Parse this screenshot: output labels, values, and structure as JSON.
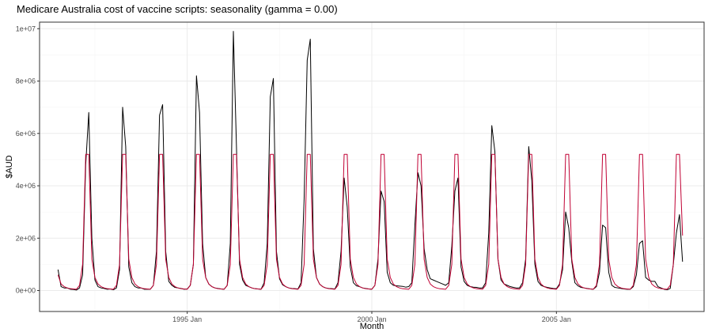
{
  "chart_data": {
    "type": "line",
    "title": "Medicare Australia cost of vaccine scripts: seasonality (gamma = 0.00)",
    "xlabel": "Month",
    "ylabel": "$AUD",
    "x_start": "1991 Jul",
    "x_end": "2008 Jun",
    "x_ticks": [
      {
        "value": "1995 Jan",
        "label": "1995 Jan"
      },
      {
        "value": "2000 Jan",
        "label": "2000 Jan"
      },
      {
        "value": "2005 Jan",
        "label": "2005 Jan"
      }
    ],
    "xlim": [
      "1991 Jan",
      "2009 Jan"
    ],
    "ylim": [
      -800000,
      10250000
    ],
    "y_ticks": [
      {
        "value": 0,
        "label": "0e+00"
      },
      {
        "value": 2000000,
        "label": "2e+06"
      },
      {
        "value": 4000000,
        "label": "4e+06"
      },
      {
        "value": 6000000,
        "label": "6e+06"
      },
      {
        "value": 8000000,
        "label": "8e+06"
      },
      {
        "value": 10000000,
        "label": "1e+07"
      }
    ],
    "grid": true,
    "legend": "none",
    "series": [
      {
        "color": "#000000",
        "values": [
          800000,
          150000,
          100000,
          100000,
          50000,
          40000,
          20000,
          100000,
          600000,
          4800000,
          6800000,
          2000000,
          400000,
          150000,
          100000,
          80000,
          50000,
          60000,
          30000,
          100000,
          800000,
          7000000,
          5500000,
          900000,
          300000,
          150000,
          100000,
          100000,
          50000,
          50000,
          50000,
          200000,
          1500000,
          6700000,
          7100000,
          1500000,
          350000,
          200000,
          120000,
          100000,
          80000,
          50000,
          60000,
          200000,
          1000000,
          8200000,
          6800000,
          1800000,
          500000,
          250000,
          150000,
          100000,
          80000,
          60000,
          50000,
          200000,
          1800000,
          9900000,
          5500000,
          1000000,
          400000,
          200000,
          150000,
          100000,
          70000,
          60000,
          50000,
          300000,
          1800000,
          7400000,
          8100000,
          1500000,
          450000,
          220000,
          150000,
          100000,
          80000,
          70000,
          60000,
          300000,
          3500000,
          8800000,
          9600000,
          1600000,
          500000,
          250000,
          150000,
          100000,
          80000,
          70000,
          60000,
          300000,
          1500000,
          4300000,
          3200000,
          900000,
          300000,
          180000,
          150000,
          100000,
          80000,
          60000,
          50000,
          200000,
          1200000,
          3800000,
          3400000,
          700000,
          300000,
          200000,
          180000,
          170000,
          160000,
          130000,
          150000,
          300000,
          2500000,
          4500000,
          4000000,
          1600000,
          800000,
          450000,
          400000,
          350000,
          300000,
          250000,
          200000,
          300000,
          1700000,
          3800000,
          4300000,
          900000,
          350000,
          200000,
          150000,
          130000,
          120000,
          100000,
          100000,
          300000,
          2200000,
          6300000,
          5300000,
          1200000,
          400000,
          250000,
          200000,
          150000,
          120000,
          100000,
          100000,
          300000,
          1200000,
          5500000,
          4200000,
          1000000,
          350000,
          200000,
          150000,
          120000,
          100000,
          80000,
          70000,
          250000,
          800000,
          3000000,
          2400000,
          1100000,
          300000,
          180000,
          120000,
          100000,
          80000,
          60000,
          50000,
          150000,
          700000,
          2500000,
          2400000,
          700000,
          200000,
          120000,
          100000,
          80000,
          60000,
          50000,
          50000,
          150000,
          600000,
          1800000,
          1900000,
          500000,
          400000,
          350000,
          350000,
          150000,
          100000,
          50000,
          30000,
          80000,
          1000000,
          2200000,
          2900000,
          1100000
        ]
      },
      {
        "color": "#c00033",
        "values": [
          600000,
          250000,
          150000,
          100000,
          70000,
          60000,
          50000,
          200000,
          1000000,
          5200000,
          5200000,
          1200000,
          500000,
          250000,
          150000,
          100000,
          70000,
          60000,
          50000,
          200000,
          1000000,
          5200000,
          5200000,
          1200000,
          500000,
          250000,
          150000,
          100000,
          70000,
          60000,
          50000,
          200000,
          1000000,
          5200000,
          5200000,
          1200000,
          500000,
          250000,
          150000,
          100000,
          70000,
          60000,
          50000,
          200000,
          1000000,
          5200000,
          5200000,
          1200000,
          500000,
          250000,
          150000,
          100000,
          70000,
          60000,
          50000,
          200000,
          1000000,
          5200000,
          5200000,
          1200000,
          500000,
          250000,
          150000,
          100000,
          70000,
          60000,
          50000,
          200000,
          1000000,
          5200000,
          5200000,
          1200000,
          500000,
          250000,
          150000,
          100000,
          70000,
          60000,
          50000,
          200000,
          1000000,
          5200000,
          5200000,
          1200000,
          500000,
          250000,
          150000,
          100000,
          70000,
          60000,
          50000,
          200000,
          1000000,
          5200000,
          5200000,
          1200000,
          500000,
          250000,
          150000,
          100000,
          70000,
          60000,
          50000,
          200000,
          1000000,
          5200000,
          5200000,
          1200000,
          500000,
          250000,
          150000,
          100000,
          70000,
          60000,
          50000,
          200000,
          1000000,
          5200000,
          5200000,
          1200000,
          500000,
          250000,
          150000,
          100000,
          70000,
          60000,
          50000,
          200000,
          1000000,
          5200000,
          5200000,
          1200000,
          500000,
          250000,
          150000,
          100000,
          70000,
          60000,
          50000,
          200000,
          1000000,
          5200000,
          5200000,
          1200000,
          500000,
          250000,
          150000,
          100000,
          70000,
          60000,
          50000,
          200000,
          1000000,
          5200000,
          5200000,
          1200000,
          500000,
          250000,
          150000,
          100000,
          70000,
          60000,
          50000,
          200000,
          1000000,
          5200000,
          5200000,
          1200000,
          500000,
          250000,
          150000,
          100000,
          70000,
          60000,
          50000,
          200000,
          1000000,
          5200000,
          5200000,
          1200000,
          500000,
          250000,
          150000,
          100000,
          70000,
          60000,
          50000,
          200000,
          1000000,
          5200000,
          5200000,
          1200000,
          500000,
          250000,
          150000,
          100000,
          70000,
          60000,
          50000,
          200000,
          1000000,
          5200000,
          5200000,
          2100000
        ]
      }
    ]
  }
}
